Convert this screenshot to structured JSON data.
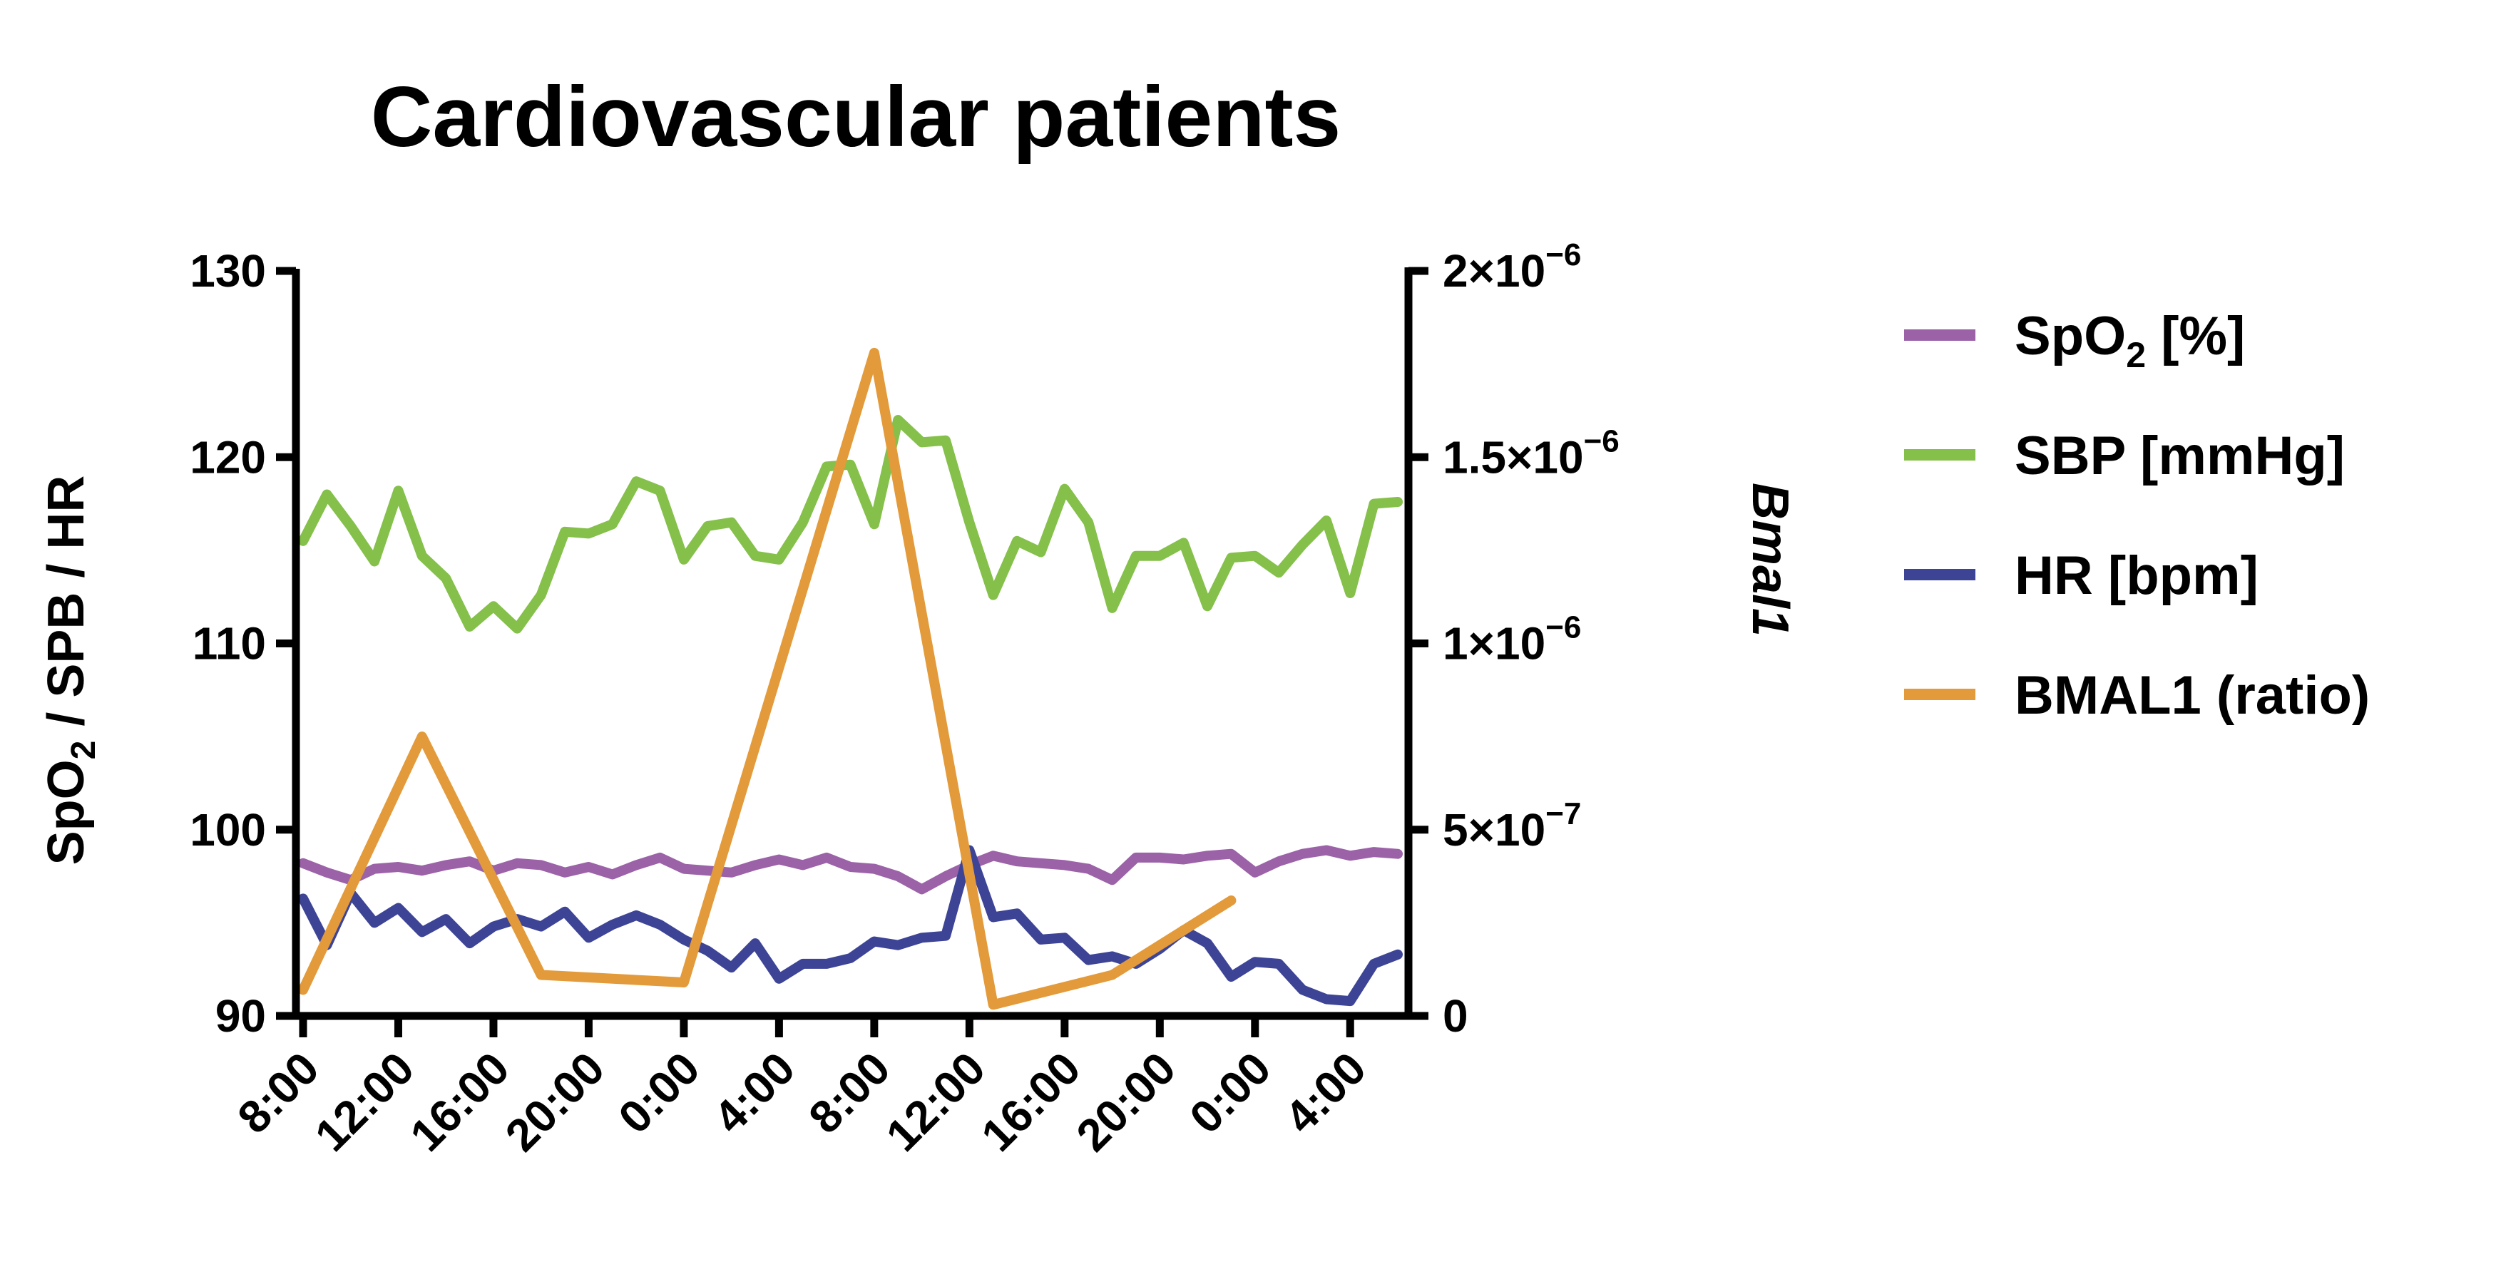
{
  "chart_data": {
    "type": "line",
    "title": "Cardiovascular patients",
    "ylabel": {
      "prefix": "SpO",
      "sub": "2",
      "suffix": " / SPB / HR"
    },
    "y2label": "Bmal1",
    "ylim": [
      90,
      130
    ],
    "yticks": [
      "90",
      "100",
      "110",
      "120",
      "130"
    ],
    "y2lim": [
      0,
      2e-06
    ],
    "y2ticks": [
      {
        "value": 0,
        "mantissa": "0",
        "exp": ""
      },
      {
        "value": 5e-07,
        "mantissa": "5×10",
        "exp": "−7"
      },
      {
        "value": 1e-06,
        "mantissa": "1×10",
        "exp": "−6"
      },
      {
        "value": 1.5e-06,
        "mantissa": "1.5×10",
        "exp": "−6"
      },
      {
        "value": 2e-06,
        "mantissa": "2×10",
        "exp": "−6"
      }
    ],
    "xlim": [
      0,
      46
    ],
    "xtick_positions": [
      0,
      4,
      8,
      12,
      16,
      20,
      24,
      28,
      32,
      36,
      40,
      44
    ],
    "xtick_labels": [
      "8:00",
      "12:00",
      "16:00",
      "20:00",
      "0:00",
      "4:00",
      "8:00",
      "12:00",
      "16:00",
      "20:00",
      "0:00",
      "4:00"
    ],
    "legend_position": "right",
    "legend": [
      {
        "key": "spo2",
        "prefix": "SpO",
        "sub": "2",
        "suffix": " [%]",
        "color": "#9b62a8"
      },
      {
        "key": "sbp",
        "prefix": "SBP [mmHg]",
        "sub": "",
        "suffix": "",
        "color": "#84c04a"
      },
      {
        "key": "hr",
        "prefix": "HR [bpm]",
        "sub": "",
        "suffix": "",
        "color": "#3d4496"
      },
      {
        "key": "bmal1",
        "prefix": "BMAL1 (ratio)",
        "sub": "",
        "suffix": "",
        "color": "#e39a3a"
      }
    ],
    "series": [
      {
        "key": "spo2",
        "axis": "left",
        "color": "#9b62a8",
        "x": [
          0,
          1,
          2,
          3,
          4,
          5,
          6,
          7,
          8,
          9,
          10,
          11,
          12,
          13,
          14,
          15,
          16,
          17,
          18,
          19,
          20,
          21,
          22,
          23,
          24,
          25,
          26,
          27,
          28,
          29,
          30,
          31,
          32,
          33,
          34,
          35,
          36,
          37,
          38,
          39,
          40,
          41,
          42,
          43,
          44,
          45,
          46
        ],
        "values": [
          98.2,
          97.7,
          97.3,
          97.9,
          98.0,
          97.8,
          98.1,
          98.3,
          97.8,
          98.2,
          98.1,
          97.7,
          98.0,
          97.6,
          98.1,
          98.5,
          97.9,
          97.8,
          97.7,
          98.1,
          98.4,
          98.1,
          98.5,
          98.0,
          97.9,
          97.5,
          96.8,
          97.5,
          98.1,
          98.6,
          98.3,
          98.2,
          98.1,
          97.9,
          97.3,
          98.5,
          98.5,
          98.4,
          98.6,
          98.7,
          97.7,
          98.3,
          98.7,
          98.9,
          98.6,
          98.8,
          98.7
        ]
      },
      {
        "key": "sbp",
        "axis": "left",
        "color": "#84c04a",
        "x": [
          0,
          1,
          2,
          3,
          4,
          5,
          6,
          7,
          8,
          9,
          10,
          11,
          12,
          13,
          14,
          15,
          16,
          17,
          18,
          19,
          20,
          21,
          22,
          23,
          24,
          25,
          26,
          27,
          28,
          29,
          30,
          31,
          32,
          33,
          34,
          35,
          36,
          37,
          38,
          39,
          40,
          41,
          42,
          43,
          44,
          45,
          46
        ],
        "values": [
          115.5,
          118.0,
          116.3,
          114.4,
          118.2,
          114.7,
          113.5,
          110.9,
          112.0,
          110.8,
          112.6,
          116.0,
          115.9,
          116.4,
          118.7,
          118.2,
          114.5,
          116.3,
          116.5,
          114.7,
          114.5,
          116.5,
          119.5,
          119.6,
          116.4,
          122.0,
          120.8,
          120.9,
          116.5,
          112.6,
          115.5,
          114.9,
          118.3,
          116.5,
          111.9,
          114.7,
          114.7,
          115.4,
          112.0,
          114.6,
          114.7,
          113.8,
          115.3,
          116.6,
          112.7,
          117.5,
          117.6
        ]
      },
      {
        "key": "hr",
        "axis": "left",
        "color": "#3d4496",
        "x": [
          0,
          1,
          2,
          3,
          4,
          5,
          6,
          7,
          8,
          9,
          10,
          11,
          12,
          13,
          14,
          15,
          16,
          17,
          18,
          19,
          20,
          21,
          22,
          23,
          24,
          25,
          26,
          27,
          28,
          29,
          30,
          31,
          32,
          33,
          34,
          35,
          36,
          37,
          38,
          39,
          40,
          41,
          42,
          43,
          44,
          45,
          46
        ],
        "values": [
          96.3,
          93.8,
          96.6,
          95.0,
          95.8,
          94.5,
          95.2,
          93.9,
          94.8,
          95.2,
          94.8,
          95.6,
          94.2,
          94.9,
          95.4,
          94.9,
          94.1,
          93.5,
          92.6,
          93.9,
          92.0,
          92.8,
          92.8,
          93.1,
          94.0,
          93.8,
          94.2,
          94.3,
          98.9,
          95.3,
          95.5,
          94.1,
          94.2,
          93.0,
          93.2,
          92.8,
          93.6,
          94.6,
          93.9,
          92.1,
          92.9,
          92.8,
          91.4,
          90.9,
          90.8,
          92.8,
          93.3
        ]
      },
      {
        "key": "bmal1",
        "axis": "right",
        "color": "#e39a3a",
        "x": [
          0,
          5,
          10,
          16,
          24,
          29,
          34,
          39
        ],
        "values": [
          7e-08,
          7.5e-07,
          1.1e-07,
          9e-08,
          1.78e-06,
          3e-08,
          1.1e-07,
          3.1e-07
        ]
      }
    ]
  }
}
